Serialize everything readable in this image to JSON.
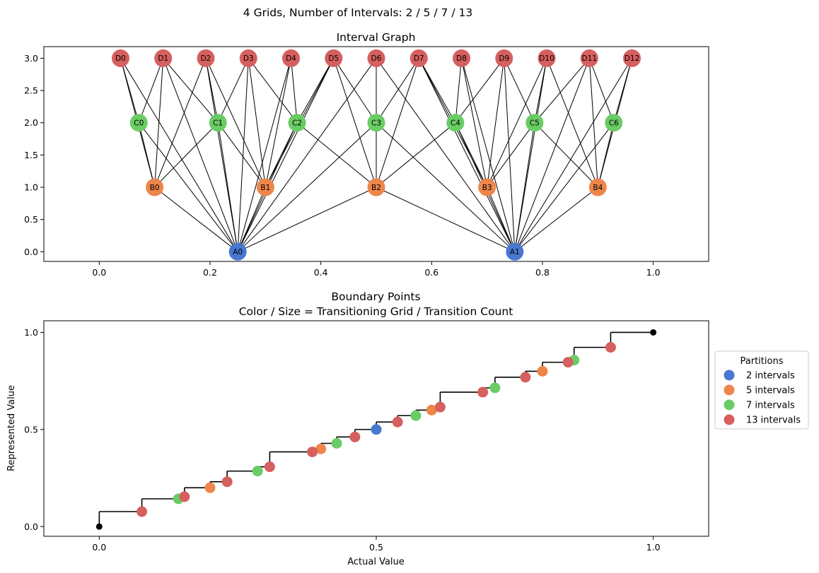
{
  "colors": {
    "A": "#4878d0",
    "B": "#ee854a",
    "C": "#6acc64",
    "D": "#d65f5f",
    "endpoint": "#000000",
    "edge": "#000000"
  },
  "suptitle": "4 Grids, Number of Intervals: 2 / 5 / 7 / 13",
  "chart_data": [
    {
      "type": "scatter",
      "subtype": "network",
      "title": "Interval Graph",
      "xlim": [
        -0.1,
        1.1
      ],
      "ylim": [
        -0.15,
        3.18
      ],
      "xticks": [
        0.0,
        0.2,
        0.4,
        0.6,
        0.8,
        1.0
      ],
      "xtick_labels": [
        "0.0",
        "0.2",
        "0.4",
        "0.6",
        "0.8",
        "1.0"
      ],
      "yticks": [
        0.0,
        0.5,
        1.0,
        1.5,
        2.0,
        2.5,
        3.0
      ],
      "ytick_labels": [
        "0.0",
        "0.5",
        "1.0",
        "1.5",
        "2.0",
        "2.5",
        "3.0"
      ],
      "levels": [
        {
          "key": "A",
          "n": 2,
          "y": 0
        },
        {
          "key": "B",
          "n": 5,
          "y": 1
        },
        {
          "key": "C",
          "n": 7,
          "y": 2
        },
        {
          "key": "D",
          "n": 13,
          "y": 3
        }
      ],
      "node_labels": {
        "A": [
          "A0",
          "A1"
        ],
        "B": [
          "B0",
          "B1",
          "B2",
          "B3",
          "B4"
        ],
        "C": [
          "C0",
          "C1",
          "C2",
          "C3",
          "C4",
          "C5",
          "C6"
        ],
        "D": [
          "D0",
          "D1",
          "D2",
          "D3",
          "D4",
          "D5",
          "D6",
          "D7",
          "D8",
          "D9",
          "D10",
          "D11",
          "D12"
        ]
      }
    },
    {
      "type": "scatter",
      "subtype": "step",
      "title": "Boundary Points",
      "subtitle": "Color / Size = Transitioning Grid / Transition Count",
      "xlabel": "Actual Value",
      "ylabel": "Represented Value",
      "xlim": [
        -0.1,
        1.1
      ],
      "ylim": [
        -0.05,
        1.06
      ],
      "xticks": [
        0.0,
        0.5,
        1.0
      ],
      "xtick_labels": [
        "0.0",
        "0.5",
        "1.0"
      ],
      "yticks": [
        0.0,
        0.5,
        1.0
      ],
      "ytick_labels": [
        "0.0",
        "0.5",
        "1.0"
      ],
      "step_points": [
        [
          0.0,
          0.0
        ],
        [
          0.0769,
          0.0769
        ],
        [
          0.1429,
          0.1429
        ],
        [
          0.1538,
          0.1538
        ],
        [
          0.2,
          0.2
        ],
        [
          0.2308,
          0.2308
        ],
        [
          0.2857,
          0.2857
        ],
        [
          0.3077,
          0.3077
        ],
        [
          0.3846,
          0.3846
        ],
        [
          0.4,
          0.4
        ],
        [
          0.4286,
          0.4286
        ],
        [
          0.4615,
          0.4615
        ],
        [
          0.5,
          0.5
        ],
        [
          0.5385,
          0.5385
        ],
        [
          0.5714,
          0.5714
        ],
        [
          0.6,
          0.6
        ],
        [
          0.6154,
          0.6154
        ],
        [
          0.6923,
          0.6923
        ],
        [
          0.7143,
          0.7143
        ],
        [
          0.7692,
          0.7692
        ],
        [
          0.8,
          0.8
        ],
        [
          0.8462,
          0.8462
        ],
        [
          0.8571,
          0.8571
        ],
        [
          0.9231,
          0.9231
        ],
        [
          1.0,
          1.0
        ]
      ],
      "endpoints": [
        [
          0.0,
          0.0
        ],
        [
          1.0,
          1.0
        ]
      ],
      "series": [
        {
          "name": "2 intervals",
          "key": "A",
          "points": [
            [
              0.5,
              0.5
            ]
          ]
        },
        {
          "name": "5 intervals",
          "key": "B",
          "points": [
            [
              0.2,
              0.2
            ],
            [
              0.4,
              0.4
            ],
            [
              0.6,
              0.6
            ],
            [
              0.8,
              0.8
            ]
          ]
        },
        {
          "name": "7 intervals",
          "key": "C",
          "points": [
            [
              0.1429,
              0.1429
            ],
            [
              0.2857,
              0.2857
            ],
            [
              0.4286,
              0.4286
            ],
            [
              0.5714,
              0.5714
            ],
            [
              0.7143,
              0.7143
            ],
            [
              0.8571,
              0.8571
            ]
          ]
        },
        {
          "name": "13 intervals",
          "key": "D",
          "points": [
            [
              0.0769,
              0.0769
            ],
            [
              0.1538,
              0.1538
            ],
            [
              0.2308,
              0.2308
            ],
            [
              0.3077,
              0.3077
            ],
            [
              0.3846,
              0.3846
            ],
            [
              0.4615,
              0.4615
            ],
            [
              0.5385,
              0.5385
            ],
            [
              0.6154,
              0.6154
            ],
            [
              0.6923,
              0.6923
            ],
            [
              0.7692,
              0.7692
            ],
            [
              0.8462,
              0.8462
            ],
            [
              0.9231,
              0.9231
            ]
          ]
        }
      ],
      "legend": {
        "title": "Partitions",
        "placement": "right"
      }
    }
  ]
}
